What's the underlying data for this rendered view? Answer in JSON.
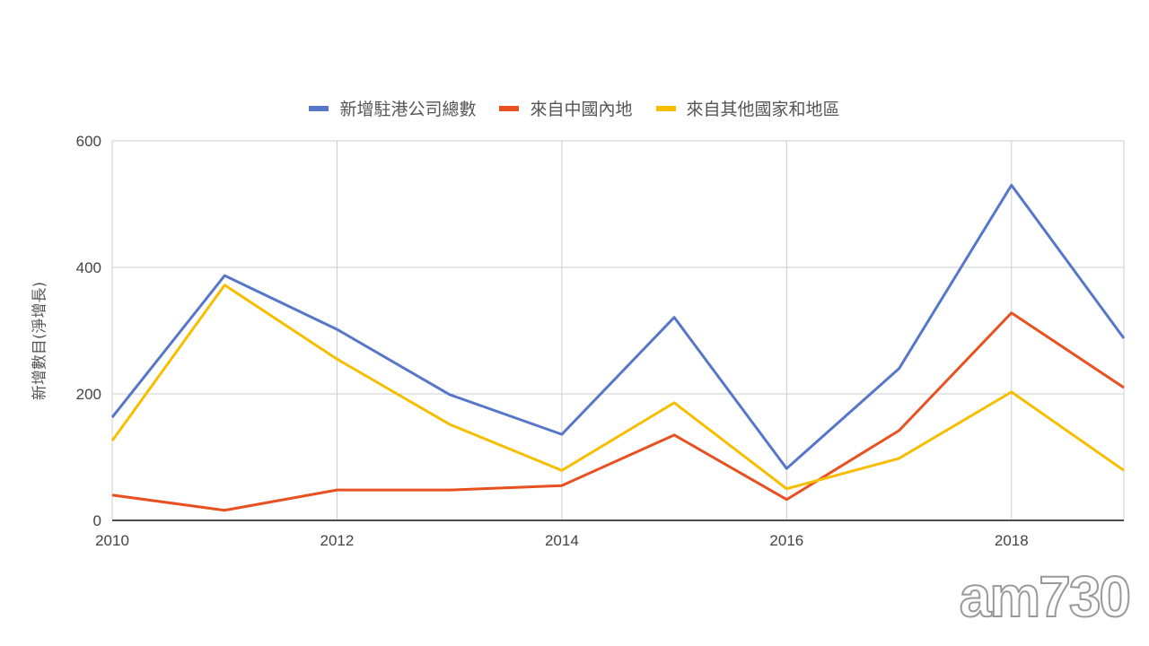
{
  "chart_data": {
    "type": "line",
    "title": "",
    "xlabel": "",
    "ylabel": "新增數目(淨增長)",
    "x": [
      2010,
      2011,
      2012,
      2013,
      2014,
      2015,
      2016,
      2017,
      2018,
      2019
    ],
    "xticks": [
      "2010",
      "2012",
      "2014",
      "2016",
      "2018"
    ],
    "yticks": [
      "0",
      "200",
      "400",
      "600"
    ],
    "xlim": [
      2010,
      2019
    ],
    "ylim": [
      0,
      600
    ],
    "grid": true,
    "legend_position": "top",
    "series": [
      {
        "name": "新增駐港公司總數",
        "color": "#5677c9",
        "values": [
          163,
          387,
          302,
          199,
          136,
          321,
          82,
          240,
          530,
          288
        ]
      },
      {
        "name": "來自中國內地",
        "color": "#e8501f",
        "values": [
          40,
          16,
          48,
          48,
          55,
          135,
          33,
          142,
          328,
          210
        ]
      },
      {
        "name": "來自其他國家和地區",
        "color": "#f7be00",
        "values": [
          126,
          372,
          255,
          152,
          79,
          186,
          50,
          98,
          203,
          79
        ]
      }
    ]
  },
  "watermark": "am730"
}
